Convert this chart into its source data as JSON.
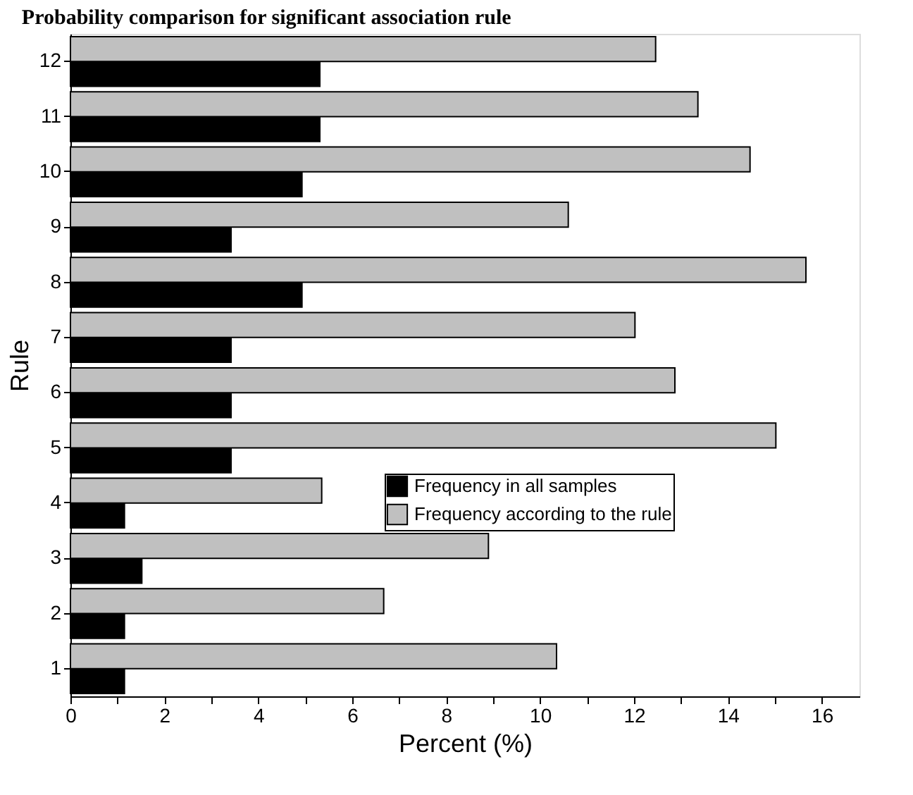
{
  "chart_data": {
    "type": "bar",
    "orientation": "horizontal",
    "title": "Probability comparison for significant association rule",
    "xlabel": "Percent (%)",
    "ylabel": "Rule",
    "categories": [
      "12",
      "11",
      "10",
      "9",
      "8",
      "7",
      "6",
      "5",
      "4",
      "3",
      "2",
      "1"
    ],
    "series": [
      {
        "name": "Frequency in all samples",
        "color": "#000000",
        "values": [
          5.31,
          5.31,
          4.93,
          3.42,
          4.93,
          3.42,
          3.42,
          3.42,
          1.15,
          1.52,
          1.15,
          1.15
        ]
      },
      {
        "name": "Frequency according to the rule",
        "color": "#c0c0c0",
        "values": [
          12.46,
          13.36,
          14.47,
          10.6,
          15.66,
          12.02,
          12.87,
          15.02,
          5.35,
          8.9,
          6.67,
          10.35
        ]
      }
    ],
    "xlim": [
      0,
      16.8
    ],
    "xticks": [
      0,
      {
        "value": 1,
        "label": null
      },
      2,
      {
        "value": 3,
        "label": null
      },
      4,
      {
        "value": 5,
        "label": null
      },
      6,
      {
        "value": 7,
        "label": null
      },
      8,
      {
        "value": 9,
        "label": null
      },
      10,
      {
        "value": 11,
        "label": null
      },
      12,
      {
        "value": 13,
        "label": null
      },
      14,
      {
        "value": 15,
        "label": null
      },
      16
    ],
    "grid": false,
    "legend": "right"
  }
}
